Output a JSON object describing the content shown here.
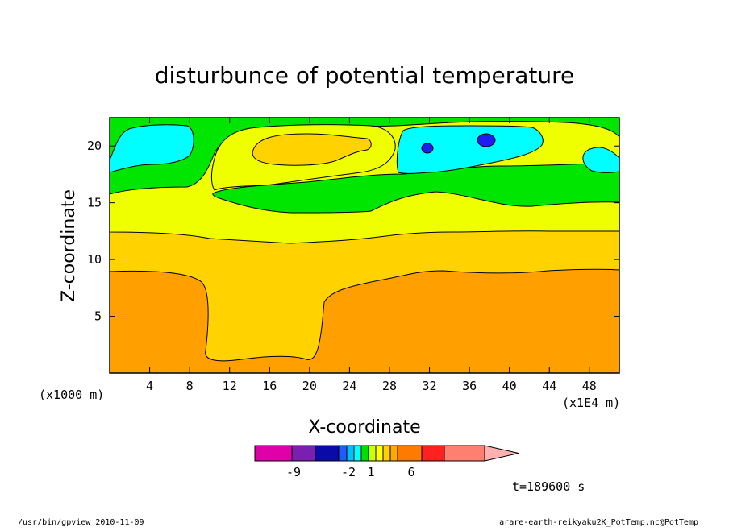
{
  "chart_data": {
    "type": "heatmap",
    "title": "disturbunce of potential temperature",
    "xlabel": "X-coordinate",
    "ylabel": "Z-coordinate",
    "x_units": "(x1E4 m)",
    "y_units": "(x1000 m)",
    "xlim": [
      0,
      51
    ],
    "ylim": [
      0,
      22.5
    ],
    "x_ticks": [
      4,
      8,
      12,
      16,
      20,
      24,
      28,
      32,
      36,
      40,
      44,
      48
    ],
    "y_ticks": [
      5,
      10,
      15,
      20
    ],
    "time_label": "t=189600 s",
    "colorbar": {
      "labels": [
        "-9",
        "-2",
        "1",
        "6"
      ],
      "colors": [
        "#e000a8",
        "#7a1fb0",
        "#0a0aa8",
        "#1e5cff",
        "#00bfff",
        "#00ffff",
        "#00e000",
        "#d0ff00",
        "#ffff00",
        "#ffd000",
        "#ffa800",
        "#ff7a00",
        "#ff2020",
        "#ff8070",
        "#ffb0b0"
      ]
    },
    "level_colors": {
      "blue": "#1e1ef0",
      "cyan": "#00ffff",
      "green": "#00e600",
      "yellow": "#f0ff00",
      "gold": "#ffd200",
      "orange": "#ff9f00"
    }
  },
  "footer": {
    "left": "/usr/bin/gpview   2010-11-09",
    "right": "arare-earth-reikyaku2K_PotTemp.nc@PotTemp"
  }
}
